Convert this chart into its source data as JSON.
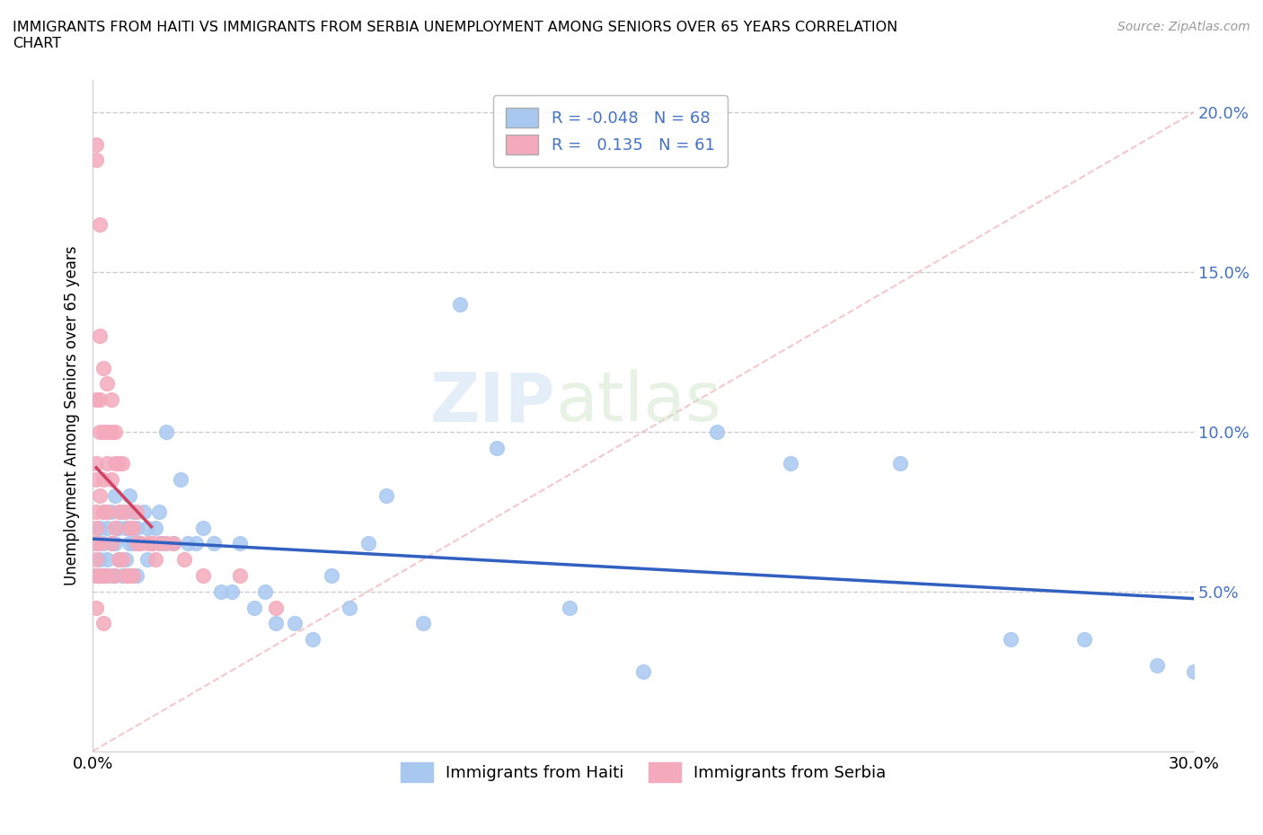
{
  "title": "IMMIGRANTS FROM HAITI VS IMMIGRANTS FROM SERBIA UNEMPLOYMENT AMONG SENIORS OVER 65 YEARS CORRELATION\nCHART",
  "source": "Source: ZipAtlas.com",
  "ylabel": "Unemployment Among Seniors over 65 years",
  "xlim": [
    0.0,
    0.3
  ],
  "ylim": [
    0.0,
    0.21
  ],
  "yticks": [
    0.05,
    0.1,
    0.15,
    0.2
  ],
  "ytick_labels": [
    "5.0%",
    "10.0%",
    "15.0%",
    "20.0%"
  ],
  "legend_haiti_R": "-0.048",
  "legend_haiti_N": "68",
  "legend_serbia_R": "0.135",
  "legend_serbia_N": "61",
  "haiti_color": "#a8c8f0",
  "serbia_color": "#f4aabc",
  "haiti_line_color": "#3060c0",
  "serbia_line_color": "#d04060",
  "haiti_scatter_x": [
    0.001,
    0.001,
    0.002,
    0.002,
    0.002,
    0.003,
    0.003,
    0.003,
    0.004,
    0.004,
    0.005,
    0.005,
    0.005,
    0.006,
    0.006,
    0.006,
    0.007,
    0.007,
    0.008,
    0.008,
    0.009,
    0.009,
    0.01,
    0.01,
    0.01,
    0.011,
    0.011,
    0.012,
    0.012,
    0.013,
    0.014,
    0.015,
    0.015,
    0.016,
    0.017,
    0.018,
    0.019,
    0.02,
    0.022,
    0.024,
    0.026,
    0.028,
    0.03,
    0.033,
    0.035,
    0.038,
    0.04,
    0.044,
    0.047,
    0.05,
    0.055,
    0.06,
    0.065,
    0.07,
    0.075,
    0.08,
    0.09,
    0.1,
    0.11,
    0.13,
    0.15,
    0.17,
    0.19,
    0.22,
    0.25,
    0.27,
    0.29,
    0.3
  ],
  "haiti_scatter_y": [
    0.065,
    0.055,
    0.07,
    0.06,
    0.055,
    0.075,
    0.065,
    0.055,
    0.07,
    0.06,
    0.075,
    0.065,
    0.055,
    0.08,
    0.065,
    0.055,
    0.07,
    0.06,
    0.075,
    0.055,
    0.07,
    0.06,
    0.08,
    0.065,
    0.055,
    0.075,
    0.065,
    0.07,
    0.055,
    0.065,
    0.075,
    0.07,
    0.06,
    0.065,
    0.07,
    0.075,
    0.065,
    0.1,
    0.065,
    0.085,
    0.065,
    0.065,
    0.07,
    0.065,
    0.05,
    0.05,
    0.065,
    0.045,
    0.05,
    0.04,
    0.04,
    0.035,
    0.055,
    0.045,
    0.065,
    0.08,
    0.04,
    0.14,
    0.095,
    0.045,
    0.025,
    0.1,
    0.09,
    0.09,
    0.035,
    0.035,
    0.027,
    0.025
  ],
  "serbia_scatter_x": [
    0.001,
    0.001,
    0.001,
    0.001,
    0.001,
    0.001,
    0.001,
    0.001,
    0.001,
    0.001,
    0.001,
    0.002,
    0.002,
    0.002,
    0.002,
    0.002,
    0.002,
    0.002,
    0.003,
    0.003,
    0.003,
    0.003,
    0.003,
    0.003,
    0.004,
    0.004,
    0.004,
    0.004,
    0.004,
    0.005,
    0.005,
    0.005,
    0.005,
    0.006,
    0.006,
    0.006,
    0.006,
    0.007,
    0.007,
    0.007,
    0.008,
    0.008,
    0.009,
    0.009,
    0.01,
    0.01,
    0.011,
    0.011,
    0.012,
    0.012,
    0.013,
    0.015,
    0.016,
    0.017,
    0.018,
    0.02,
    0.022,
    0.025,
    0.03,
    0.04,
    0.05
  ],
  "serbia_scatter_y": [
    0.19,
    0.185,
    0.11,
    0.09,
    0.085,
    0.075,
    0.07,
    0.065,
    0.06,
    0.055,
    0.045,
    0.165,
    0.13,
    0.11,
    0.1,
    0.08,
    0.065,
    0.055,
    0.12,
    0.1,
    0.085,
    0.075,
    0.055,
    0.04,
    0.115,
    0.1,
    0.09,
    0.075,
    0.055,
    0.11,
    0.1,
    0.085,
    0.065,
    0.1,
    0.09,
    0.07,
    0.055,
    0.09,
    0.075,
    0.06,
    0.09,
    0.06,
    0.075,
    0.055,
    0.07,
    0.055,
    0.07,
    0.055,
    0.075,
    0.065,
    0.065,
    0.065,
    0.065,
    0.06,
    0.065,
    0.065,
    0.065,
    0.06,
    0.055,
    0.055,
    0.045
  ]
}
